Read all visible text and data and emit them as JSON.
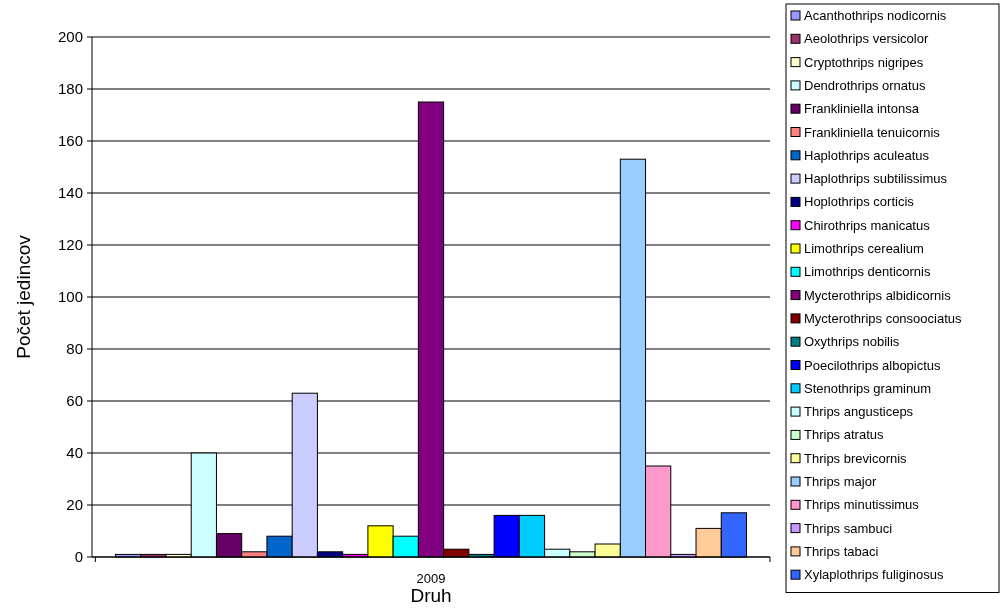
{
  "chart_data": {
    "type": "bar",
    "xlabel": "Druh",
    "ylabel": "Počet jedincov",
    "categories": [
      "2009"
    ],
    "ylim": [
      0,
      200
    ],
    "yticks": [
      0,
      20,
      40,
      60,
      80,
      100,
      120,
      140,
      160,
      180,
      200
    ],
    "grid": "y",
    "legend": "right",
    "series": [
      {
        "name": "Acanthothrips nodicornis",
        "color": "#9999ff",
        "values": [
          1
        ]
      },
      {
        "name": "Aeolothrips versicolor",
        "color": "#993366",
        "values": [
          1
        ]
      },
      {
        "name": "Cryptothrips nigripes",
        "color": "#ffffcc",
        "values": [
          1
        ]
      },
      {
        "name": "Dendrothrips ornatus",
        "color": "#ccffff",
        "values": [
          40
        ]
      },
      {
        "name": "Frankliniella intonsa",
        "color": "#660066",
        "values": [
          9
        ]
      },
      {
        "name": "Frankliniella tenuicornis",
        "color": "#ff8080",
        "values": [
          2
        ]
      },
      {
        "name": "Haplothrips aculeatus",
        "color": "#0066cc",
        "values": [
          8
        ]
      },
      {
        "name": "Haplothrips subtilissimus",
        "color": "#ccccff",
        "values": [
          63
        ]
      },
      {
        "name": "Hoplothrips corticis",
        "color": "#000080",
        "values": [
          2
        ]
      },
      {
        "name": "Chirothrips manicatus",
        "color": "#ff00ff",
        "values": [
          1
        ]
      },
      {
        "name": "Limothrips cerealium",
        "color": "#ffff00",
        "values": [
          12
        ]
      },
      {
        "name": "Limothrips denticornis",
        "color": "#00ffff",
        "values": [
          8
        ]
      },
      {
        "name": "Mycterothrips albidicornis",
        "color": "#800080",
        "values": [
          175
        ]
      },
      {
        "name": "Mycterothrips consoociatus",
        "color": "#800000",
        "values": [
          3
        ]
      },
      {
        "name": "Oxythrips nobilis",
        "color": "#008080",
        "values": [
          1
        ]
      },
      {
        "name": "Poecilothrips albopictus",
        "color": "#0000ff",
        "values": [
          16
        ]
      },
      {
        "name": "Stenothrips graminum",
        "color": "#00ccff",
        "values": [
          16
        ]
      },
      {
        "name": "Thrips angusticeps",
        "color": "#ccffff",
        "values": [
          3
        ]
      },
      {
        "name": "Thrips atratus",
        "color": "#ccffcc",
        "values": [
          2
        ]
      },
      {
        "name": "Thrips brevicornis",
        "color": "#ffff99",
        "values": [
          5
        ]
      },
      {
        "name": "Thrips major",
        "color": "#99ccff",
        "values": [
          153
        ]
      },
      {
        "name": "Thrips minutissimus",
        "color": "#ff99cc",
        "values": [
          35
        ]
      },
      {
        "name": "Thrips sambuci",
        "color": "#cc99ff",
        "values": [
          1
        ]
      },
      {
        "name": "Thrips tabaci",
        "color": "#ffcc99",
        "values": [
          11
        ]
      },
      {
        "name": "Xylaplothrips fuliginosus",
        "color": "#3366ff",
        "values": [
          17
        ]
      }
    ]
  }
}
